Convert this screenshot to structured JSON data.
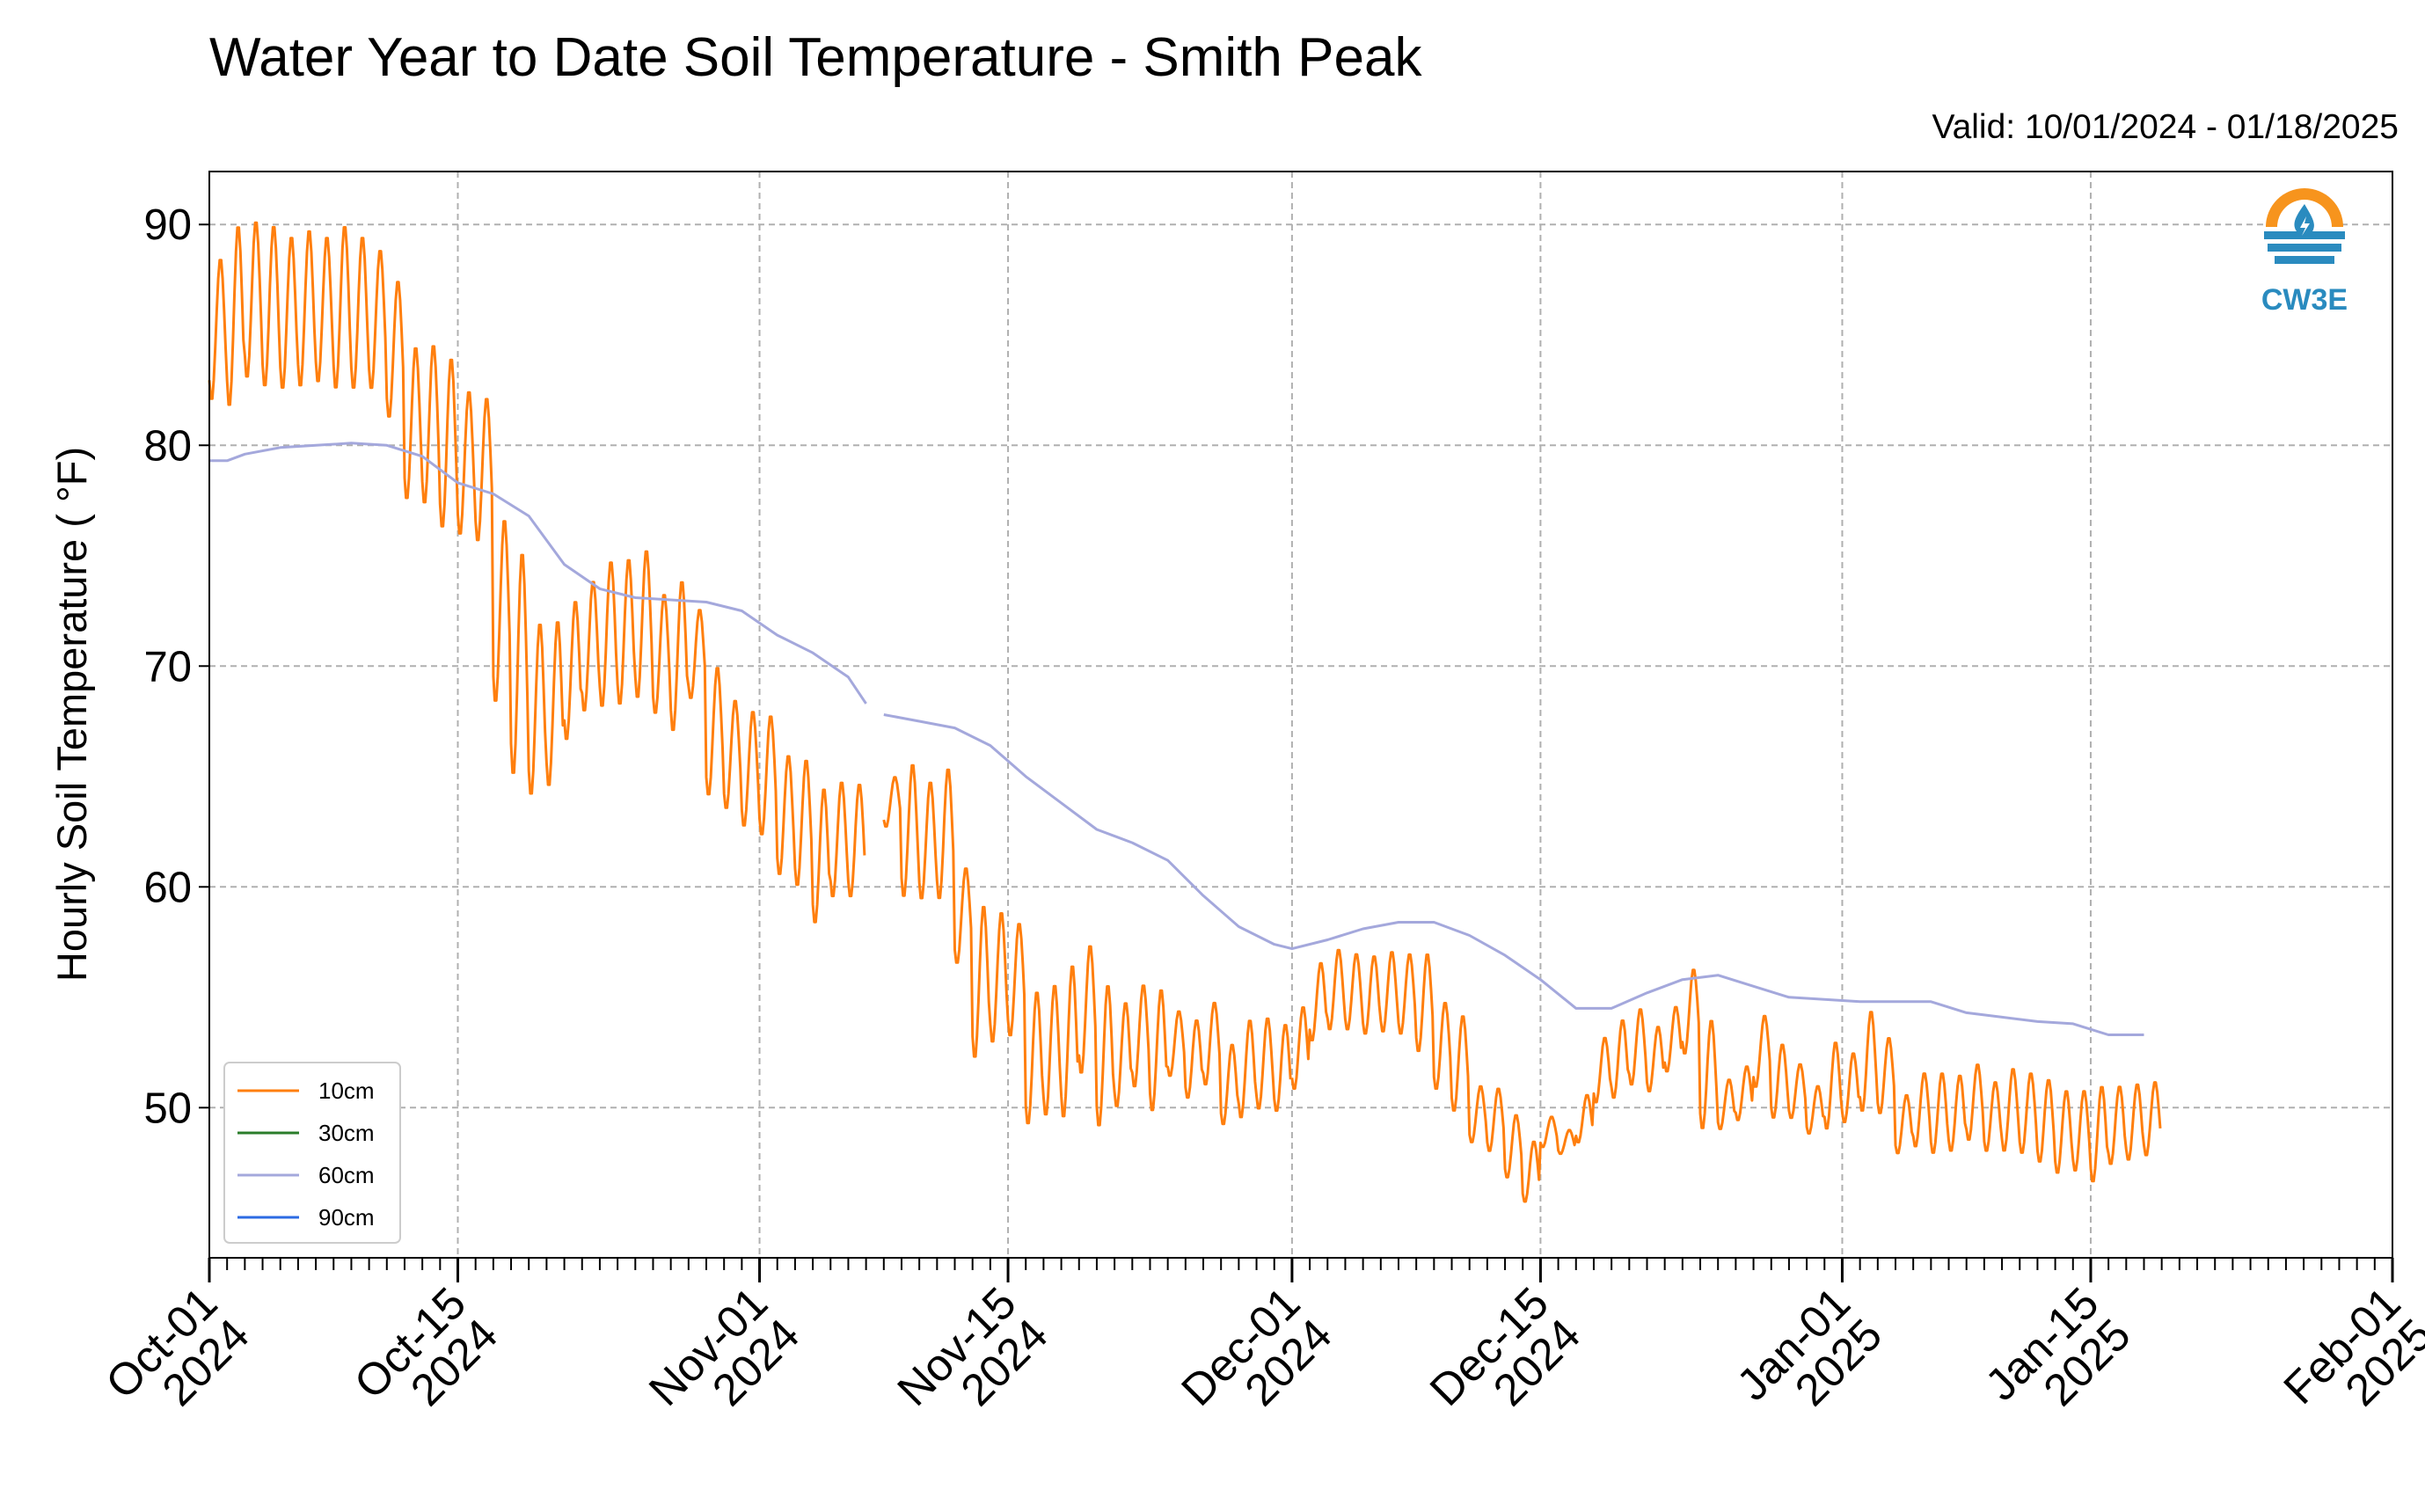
{
  "header": {
    "title": "Water Year to Date Soil Temperature - Smith Peak",
    "valid": "Valid: 10/01/2024 - 01/18/2025"
  },
  "logo": {
    "text": "CW3E",
    "icon": "cw3e-logo-icon",
    "colors": {
      "orange": "#f7941d",
      "blue": "#2a8bbf"
    }
  },
  "chart_data": {
    "type": "line",
    "title": "Water Year to Date Soil Temperature - Smith Peak",
    "ylabel": "Hourly Soil Temperature ( $^\\circ$F)",
    "ylabel_display": "Hourly Soil Temperature ( °F)",
    "xlim": [
      "2024-10-01",
      "2025-02-01"
    ],
    "ylim": [
      43.2,
      92.4
    ],
    "yticks": [
      50,
      60,
      70,
      80,
      90
    ],
    "xticks": [
      {
        "date": "2024-10-01",
        "line1": "Oct-01",
        "line2": "2024"
      },
      {
        "date": "2024-10-15",
        "line1": "Oct-15",
        "line2": "2024"
      },
      {
        "date": "2024-11-01",
        "line1": "Nov-01",
        "line2": "2024"
      },
      {
        "date": "2024-11-15",
        "line1": "Nov-15",
        "line2": "2024"
      },
      {
        "date": "2024-12-01",
        "line1": "Dec-01",
        "line2": "2024"
      },
      {
        "date": "2024-12-15",
        "line1": "Dec-15",
        "line2": "2024"
      },
      {
        "date": "2025-01-01",
        "line1": "Jan-01",
        "line2": "2025"
      },
      {
        "date": "2025-01-15",
        "line1": "Jan-15",
        "line2": "2025"
      },
      {
        "date": "2025-02-01",
        "line1": "Feb-01",
        "line2": "2025"
      }
    ],
    "grid": true,
    "legend_position": "lower-left",
    "series": [
      {
        "name": "10cm",
        "color": "#ff7f0e",
        "segments": [
          {
            "x": [
              "2024-10-01",
              "2024-10-02",
              "2024-10-03",
              "2024-10-04",
              "2024-10-05",
              "2024-10-06",
              "2024-10-07",
              "2024-10-08",
              "2024-10-09",
              "2024-10-10",
              "2024-10-11",
              "2024-10-12",
              "2024-10-13",
              "2024-10-14",
              "2024-10-15",
              "2024-10-16",
              "2024-10-17",
              "2024-10-18",
              "2024-10-19",
              "2024-10-20",
              "2024-10-21",
              "2024-10-22",
              "2024-10-23",
              "2024-10-24",
              "2024-10-25",
              "2024-10-26",
              "2024-10-27",
              "2024-10-28",
              "2024-10-29",
              "2024-10-30",
              "2024-10-31",
              "2024-11-01",
              "2024-11-02",
              "2024-11-03",
              "2024-11-04",
              "2024-11-05",
              "2024-11-06",
              "2024-11-07",
              "2024-11-08",
              "2024-11-09",
              "2024-11-10"
            ],
            "max": [
              88.5,
              90.0,
              90.2,
              90.0,
              89.5,
              89.8,
              89.5,
              90.0,
              89.5,
              88.9,
              87.5,
              84.5,
              84.6,
              84.0,
              82.5,
              82.2,
              76.7,
              75.2,
              72.0,
              72.1,
              73.0,
              73.9,
              74.8,
              74.9,
              75.3,
              73.3,
              73.9,
              72.6,
              70.0,
              68.5,
              68.0,
              67.8,
              66.0,
              65.8,
              64.5,
              64.8,
              64.7,
              null,
              null,
              null,
              null
            ],
            "min": [
              82.0,
              81.7,
              83.0,
              82.6,
              82.5,
              82.6,
              82.8,
              82.5,
              82.5,
              82.5,
              81.2,
              77.5,
              77.3,
              76.2,
              75.9,
              75.6,
              68.3,
              65.0,
              64.1,
              64.5,
              66.6,
              67.9,
              68.1,
              68.2,
              68.5,
              67.8,
              67.0,
              68.5,
              64.1,
              63.5,
              62.7,
              62.3,
              60.5,
              60.0,
              58.3,
              59.5,
              59.5,
              null,
              null,
              null,
              null
            ]
          },
          {
            "x": [
              "2024-11-08",
              "2024-11-09",
              "2024-11-10",
              "2024-11-11",
              "2024-11-12",
              "2024-11-13",
              "2024-11-14",
              "2024-11-15",
              "2024-11-16",
              "2024-11-17",
              "2024-11-18",
              "2024-11-19",
              "2024-11-20",
              "2024-11-21",
              "2024-11-22",
              "2024-11-23",
              "2024-11-24",
              "2024-11-25",
              "2024-11-26",
              "2024-11-27",
              "2024-11-28",
              "2024-11-29",
              "2024-11-30"
            ],
            "max": [
              65.0,
              65.6,
              64.8,
              65.4,
              60.9,
              59.2,
              58.9,
              58.4,
              55.3,
              55.6,
              56.5,
              57.4,
              55.6,
              54.8,
              55.6,
              55.4,
              54.4,
              54.0,
              54.8,
              52.9,
              54.0,
              54.1,
              53.8
            ],
            "min": [
              62.7,
              59.5,
              59.4,
              59.4,
              56.5,
              52.2,
              52.9,
              53.2,
              49.2,
              49.6,
              49.5,
              51.5,
              49.1,
              50.0,
              50.9,
              49.8,
              51.4,
              50.4,
              51.0,
              49.2,
              49.5,
              49.9,
              49.8
            ]
          },
          {
            "x": [
              "2024-12-01",
              "2024-12-02",
              "2024-12-03",
              "2024-12-04",
              "2024-12-05",
              "2024-12-06",
              "2024-12-07",
              "2024-12-08",
              "2024-12-09",
              "2024-12-10",
              "2024-12-11",
              "2024-12-12",
              "2024-12-13",
              "2024-12-14",
              "2024-12-15",
              "2024-12-16",
              "2024-12-17",
              "2024-12-18",
              "2024-12-19",
              "2024-12-20",
              "2024-12-21",
              "2024-12-22",
              "2024-12-23",
              "2024-12-24",
              "2024-12-25",
              "2024-12-26",
              "2024-12-27",
              "2024-12-28",
              "2024-12-29",
              "2024-12-30",
              "2024-12-31",
              "2025-01-01",
              "2025-01-02",
              "2025-01-03",
              "2025-01-04",
              "2025-01-05",
              "2025-01-06",
              "2025-01-07",
              "2025-01-08",
              "2025-01-09",
              "2025-01-10",
              "2025-01-11",
              "2025-01-12",
              "2025-01-13",
              "2025-01-14",
              "2025-01-15",
              "2025-01-16",
              "2025-01-17",
              "2025-01-18"
            ],
            "max": [
              54.6,
              56.6,
              57.2,
              57.0,
              56.9,
              57.1,
              57.0,
              57.0,
              54.8,
              54.2,
              51.0,
              50.9,
              49.7,
              48.5,
              49.6,
              49.0,
              50.6,
              53.2,
              54.0,
              54.5,
              53.7,
              54.6,
              56.3,
              54.0,
              51.3,
              51.9,
              54.2,
              52.9,
              52.0,
              51.0,
              53.0,
              52.5,
              54.4,
              53.2,
              50.6,
              51.6,
              51.6,
              51.5,
              52.0,
              51.2,
              51.8,
              51.6,
              51.3,
              50.8,
              50.8,
              51.0,
              51.0,
              51.1,
              51.2
            ],
            "min": [
              50.8,
              53.0,
              53.5,
              53.5,
              53.3,
              53.4,
              53.3,
              52.5,
              50.8,
              49.8,
              48.4,
              48.0,
              46.8,
              45.7,
              48.2,
              47.9,
              48.4,
              50.2,
              50.4,
              51.0,
              50.7,
              51.6,
              52.4,
              49.0,
              49.0,
              49.4,
              50.9,
              49.5,
              49.5,
              48.8,
              49.0,
              49.3,
              49.8,
              49.7,
              47.9,
              48.2,
              47.9,
              48.0,
              48.5,
              48.0,
              48.0,
              47.9,
              47.5,
              47.0,
              47.1,
              46.6,
              47.4,
              47.6,
              47.8
            ]
          }
        ]
      },
      {
        "name": "30cm",
        "color": "#2a7d2a",
        "segments": []
      },
      {
        "name": "60cm",
        "color": "#a4a8dc",
        "segments": [
          {
            "x": [
              "2024-10-01",
              "2024-10-02",
              "2024-10-03",
              "2024-10-05",
              "2024-10-07",
              "2024-10-09",
              "2024-10-11",
              "2024-10-13",
              "2024-10-15",
              "2024-10-17",
              "2024-10-19",
              "2024-10-21",
              "2024-10-23",
              "2024-10-25",
              "2024-10-27",
              "2024-10-29",
              "2024-10-31",
              "2024-11-02",
              "2024-11-04",
              "2024-11-06",
              "2024-11-07"
            ],
            "y": [
              79.3,
              79.3,
              79.6,
              79.9,
              80.0,
              80.1,
              80.0,
              79.5,
              78.3,
              77.8,
              76.8,
              74.6,
              73.5,
              73.1,
              73.0,
              72.9,
              72.5,
              71.4,
              70.6,
              69.5,
              68.3
            ]
          },
          {
            "x": [
              "2024-11-08",
              "2024-11-10",
              "2024-11-12",
              "2024-11-14",
              "2024-11-16",
              "2024-11-18",
              "2024-11-20",
              "2024-11-22",
              "2024-11-24",
              "2024-11-26",
              "2024-11-28",
              "2024-11-30",
              "2024-12-01",
              "2024-12-03",
              "2024-12-05",
              "2024-12-07",
              "2024-12-09",
              "2024-12-11",
              "2024-12-13",
              "2024-12-15",
              "2024-12-17",
              "2024-12-19",
              "2024-12-21",
              "2024-12-23",
              "2024-12-25",
              "2024-12-27",
              "2024-12-29",
              "2024-12-31",
              "2025-01-02",
              "2025-01-04",
              "2025-01-06",
              "2025-01-08",
              "2025-01-10",
              "2025-01-12",
              "2025-01-14",
              "2025-01-16",
              "2025-01-18"
            ],
            "y": [
              67.8,
              67.5,
              67.2,
              66.4,
              65.0,
              63.8,
              62.6,
              62.0,
              61.2,
              59.6,
              58.2,
              57.4,
              57.2,
              57.6,
              58.1,
              58.4,
              58.4,
              57.8,
              56.9,
              55.8,
              54.5,
              54.5,
              55.2,
              55.8,
              56.0,
              55.5,
              55.0,
              54.9,
              54.8,
              54.8,
              54.8,
              54.3,
              54.1,
              53.9,
              53.8,
              53.3,
              53.3
            ]
          }
        ]
      },
      {
        "name": "90cm",
        "color": "#2c6be3",
        "segments": []
      }
    ]
  }
}
